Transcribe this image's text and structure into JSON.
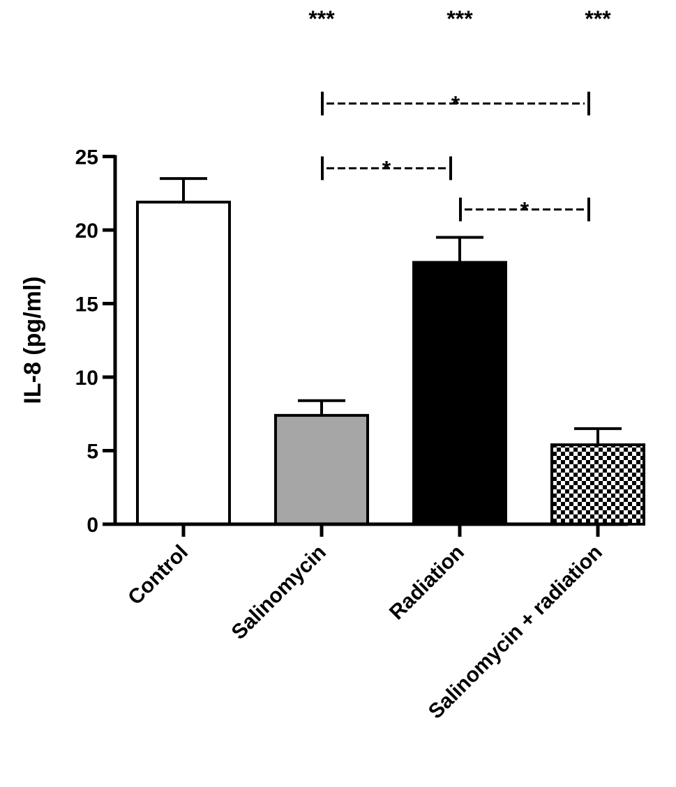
{
  "chart_data": {
    "type": "bar",
    "title": "",
    "xlabel": "",
    "ylabel": "IL-8 (pg/ml)",
    "ylim": [
      0,
      25
    ],
    "yticks": [
      0,
      5,
      10,
      15,
      20,
      25
    ],
    "categories": [
      "Control",
      "Salinomycin",
      "Radiation",
      "Salinomycin + radiation"
    ],
    "values": [
      21.9,
      7.4,
      17.8,
      5.4
    ],
    "errors": [
      1.6,
      1.0,
      1.7,
      1.1
    ],
    "bar_fills": [
      "white",
      "gray",
      "black",
      "checkered"
    ],
    "colors": {
      "gray": "#a6a6a6",
      "black": "#000000",
      "white": "#ffffff"
    },
    "top_annotations": [
      {
        "category": "Salinomycin",
        "text": "***"
      },
      {
        "category": "Radiation",
        "text": "***"
      },
      {
        "category": "Salinomycin + radiation",
        "text": "***"
      }
    ],
    "comparisons": [
      {
        "from": "Salinomycin",
        "to": "Salinomycin + radiation",
        "text": "*",
        "y": 28.6
      },
      {
        "from": "Salinomycin",
        "to": "Radiation",
        "text": "*",
        "y": 24.2
      },
      {
        "from": "Radiation",
        "to": "Salinomycin + radiation",
        "text": "*",
        "y": 21.4
      }
    ],
    "grid": false,
    "legend": "none"
  }
}
